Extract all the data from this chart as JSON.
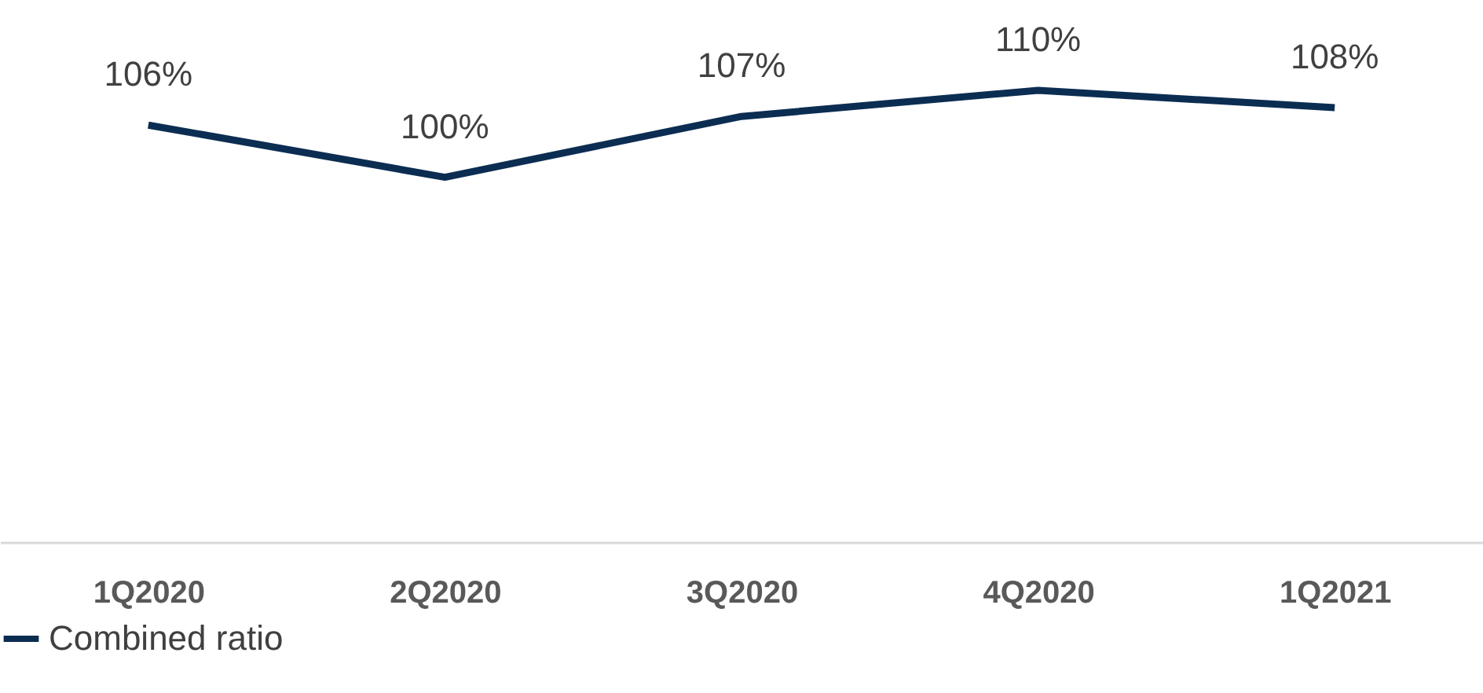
{
  "chart_data": {
    "type": "line",
    "categories": [
      "1Q2020",
      "2Q2020",
      "3Q2020",
      "4Q2020",
      "1Q2021"
    ],
    "series": [
      {
        "name": "Combined ratio",
        "color": "#0c2d52",
        "values": [
          106,
          100,
          107,
          110,
          108
        ],
        "value_labels": [
          "106%",
          "100%",
          "107%",
          "110%",
          "108%"
        ]
      }
    ],
    "legend": "bottom",
    "marker": "none",
    "line_style": "solid",
    "tick_labels": "x"
  }
}
